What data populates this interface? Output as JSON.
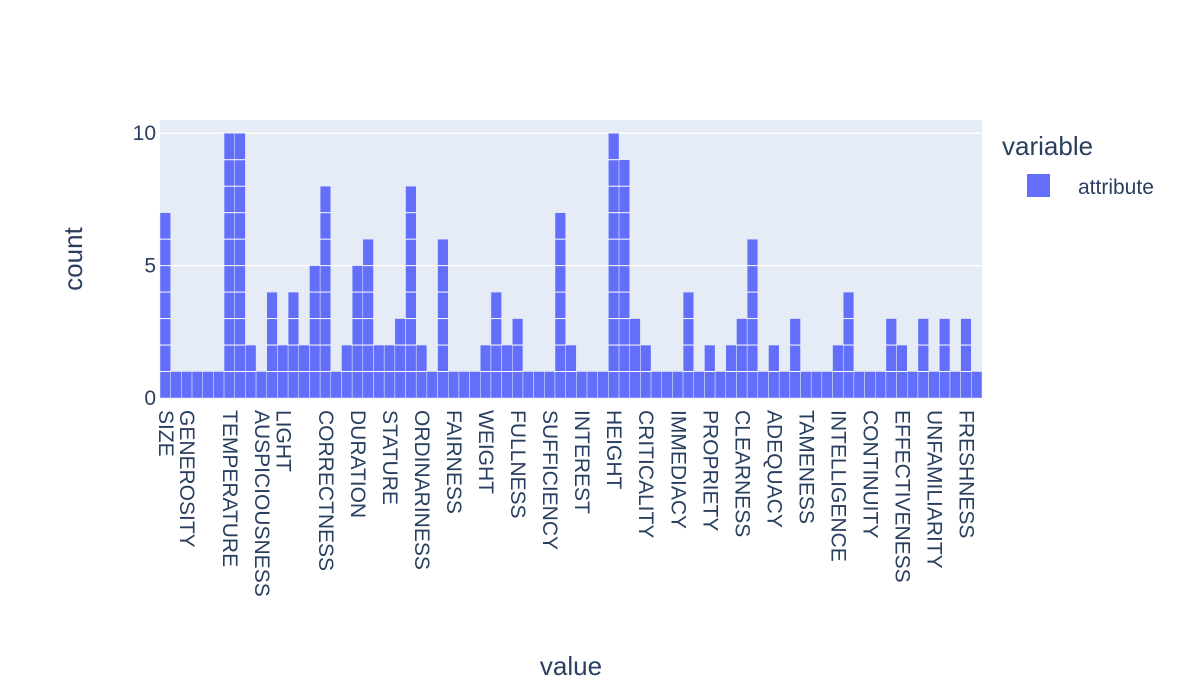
{
  "chart_data": {
    "type": "bar",
    "xlabel": "value",
    "ylabel": "count",
    "ylim": [
      0,
      10.5
    ],
    "yticks": [
      0,
      5,
      10
    ],
    "grid": true,
    "legend": {
      "title": "variable",
      "position": "top-right"
    },
    "categories": [
      "SIZE",
      "c02",
      "GENEROSITY",
      "c04",
      "c05",
      "c06",
      "TEMPERATURE",
      "c08",
      "c09",
      "AUSPICIOUSNESS",
      "c11",
      "LIGHT",
      "c13",
      "c14",
      "c15",
      "CORRECTNESS",
      "c17",
      "c18",
      "DURATION",
      "c20",
      "c21",
      "STATURE",
      "c23",
      "c24",
      "ORDINARINESS",
      "c26",
      "c27",
      "FAIRNESS",
      "c29",
      "c30",
      "WEIGHT",
      "c32",
      "c33",
      "FULLNESS",
      "c35",
      "c36",
      "SUFFICIENCY",
      "c38",
      "c39",
      "INTEREST",
      "c41",
      "c42",
      "HEIGHT",
      "c44",
      "c45",
      "CRITICALITY",
      "c47",
      "c48",
      "IMMEDIACY",
      "c50",
      "c51",
      "PROPRIETY",
      "c53",
      "c54",
      "CLEARNESS",
      "c56",
      "c57",
      "ADEQUACY",
      "c59",
      "c60",
      "TAMENESS",
      "c62",
      "c63",
      "INTELLIGENCE",
      "c65",
      "c66",
      "CONTINUITY",
      "c68",
      "c69",
      "EFFECTIVENESS",
      "c71",
      "c72",
      "UNFAMILIARITY",
      "c74",
      "c75",
      "FRESHNESS",
      "c77"
    ],
    "tick_labels": [
      "SIZE",
      "GENEROSITY",
      "TEMPERATURE",
      "AUSPICIOUSNESS",
      "LIGHT",
      "CORRECTNESS",
      "DURATION",
      "STATURE",
      "ORDINARINESS",
      "FAIRNESS",
      "WEIGHT",
      "FULLNESS",
      "SUFFICIENCY",
      "INTEREST",
      "HEIGHT",
      "CRITICALITY",
      "IMMEDIACY",
      "PROPRIETY",
      "CLEARNESS",
      "ADEQUACY",
      "TAMENESS",
      "INTELLIGENCE",
      "CONTINUITY",
      "EFFECTIVENESS",
      "UNFAMILIARITY",
      "FRESHNESS"
    ],
    "series": [
      {
        "name": "attribute",
        "color": "#636efa",
        "values": [
          7,
          1,
          1,
          1,
          1,
          1,
          10,
          10,
          2,
          1,
          4,
          2,
          4,
          2,
          5,
          8,
          1,
          2,
          5,
          6,
          2,
          2,
          3,
          8,
          2,
          1,
          6,
          1,
          1,
          1,
          2,
          4,
          2,
          3,
          1,
          1,
          1,
          7,
          2,
          1,
          1,
          1,
          10,
          9,
          3,
          2,
          1,
          1,
          1,
          4,
          1,
          2,
          1,
          2,
          3,
          6,
          1,
          2,
          1,
          3,
          1,
          1,
          1,
          2,
          4,
          1,
          1,
          1,
          3,
          2,
          1,
          3,
          1,
          3,
          1,
          3,
          1
        ]
      }
    ]
  },
  "colors": {
    "plot_bg": "#e5ecf6",
    "grid": "#ffffff",
    "bar": "#636efa",
    "text": "#2a3f5f"
  }
}
